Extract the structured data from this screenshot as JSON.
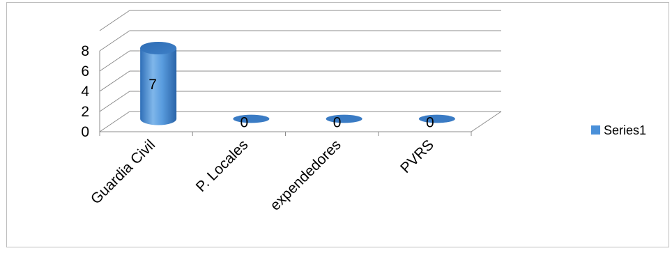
{
  "chart_data": {
    "type": "bar",
    "style": "3d-cylinder",
    "categories": [
      "Guardia Civil",
      "P. Locales",
      "expendedores",
      "PVRS"
    ],
    "series": [
      {
        "name": "Series1",
        "values": [
          7,
          0,
          0,
          0
        ],
        "color": "#4a90d9"
      }
    ],
    "data_labels": [
      "7",
      "0",
      "0",
      "0"
    ],
    "yticks": [
      "0",
      "2",
      "4",
      "6",
      "8"
    ],
    "ylim": [
      0,
      8
    ],
    "grid": true,
    "legend": "right"
  }
}
